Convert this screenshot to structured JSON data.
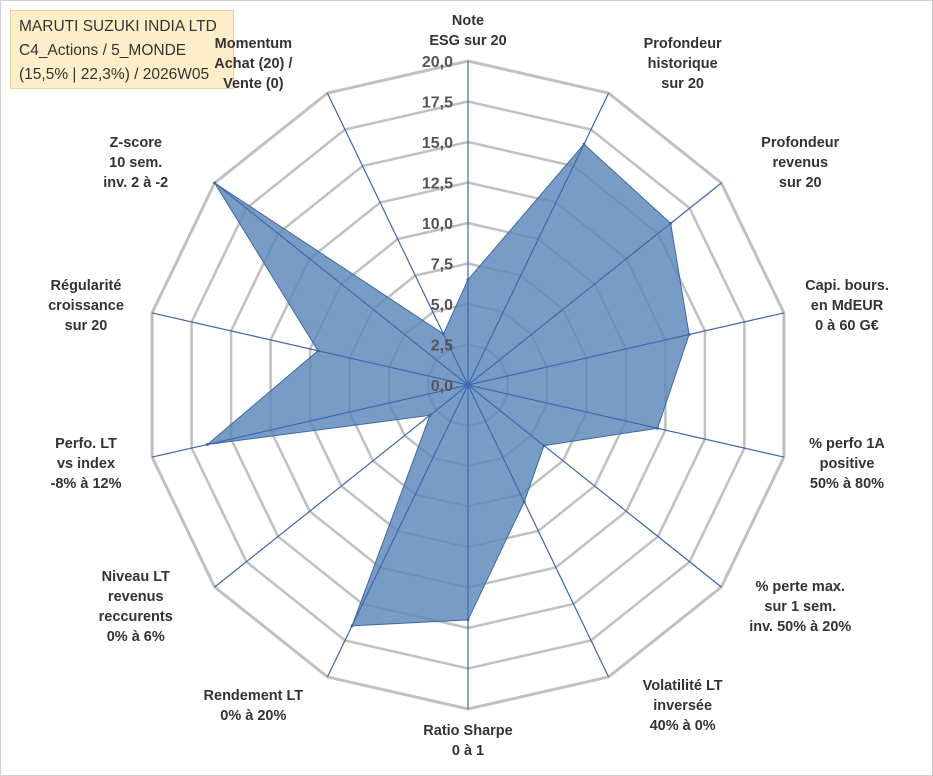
{
  "title": {
    "line1": "MARUTI SUZUKI INDIA LTD",
    "line2": "C4_Actions / 5_MONDE",
    "line3": "(15,5% | 22,3%) / 2026W05"
  },
  "colors": {
    "fill": "#5a86b8",
    "stroke": "#3d69a3",
    "grid": "#c0c0c0",
    "spoke": "#3a67b0",
    "title_bg": "#fdeec9"
  },
  "chart_data": {
    "type": "radar",
    "rmin": 0,
    "rmax": 20,
    "tick_step": 2.5,
    "tick_labels": [
      "0,0",
      "2,5",
      "5,0",
      "7,5",
      "10,0",
      "12,5",
      "15,0",
      "17,5",
      "20,0"
    ],
    "axes": [
      {
        "lines": [
          "Note",
          "ESG sur 20"
        ],
        "value": 6.5
      },
      {
        "lines": [
          "Profondeur",
          "historique",
          "sur 20"
        ],
        "value": 16.5
      },
      {
        "lines": [
          "Profondeur",
          "revenus",
          "sur 20"
        ],
        "value": 16
      },
      {
        "lines": [
          "Capi. bours.",
          "en MdEUR",
          "0 à 60 G€"
        ],
        "value": 14
      },
      {
        "lines": [
          "% perfo 1A",
          "positive",
          "50% à 80%"
        ],
        "value": 12
      },
      {
        "lines": [
          "% perte max.",
          "sur 1 sem.",
          "inv. 50% à 20%"
        ],
        "value": 6
      },
      {
        "lines": [
          "Volatilité LT",
          "inversée",
          "40% à 0%"
        ],
        "value": 8
      },
      {
        "lines": [
          "Ratio Sharpe",
          "0 à 1"
        ],
        "value": 14.5
      },
      {
        "lines": [
          "Rendement LT",
          "0% à 20%"
        ],
        "value": 16.5
      },
      {
        "lines": [
          "Niveau LT",
          "revenus",
          "reccurents",
          "0% à 6%"
        ],
        "value": 3
      },
      {
        "lines": [
          "Perfo. LT",
          "vs index",
          "-8% à 12%"
        ],
        "value": 16.5
      },
      {
        "lines": [
          "Régularité",
          "croissance",
          "sur 20"
        ],
        "value": 9.5
      },
      {
        "lines": [
          "Z-score",
          "10 sem.",
          "inv. 2 à -2"
        ],
        "value": 20
      },
      {
        "lines": [
          "Momentum",
          "Achat (20) /",
          "Vente (0)"
        ],
        "value": 3.5
      }
    ]
  }
}
